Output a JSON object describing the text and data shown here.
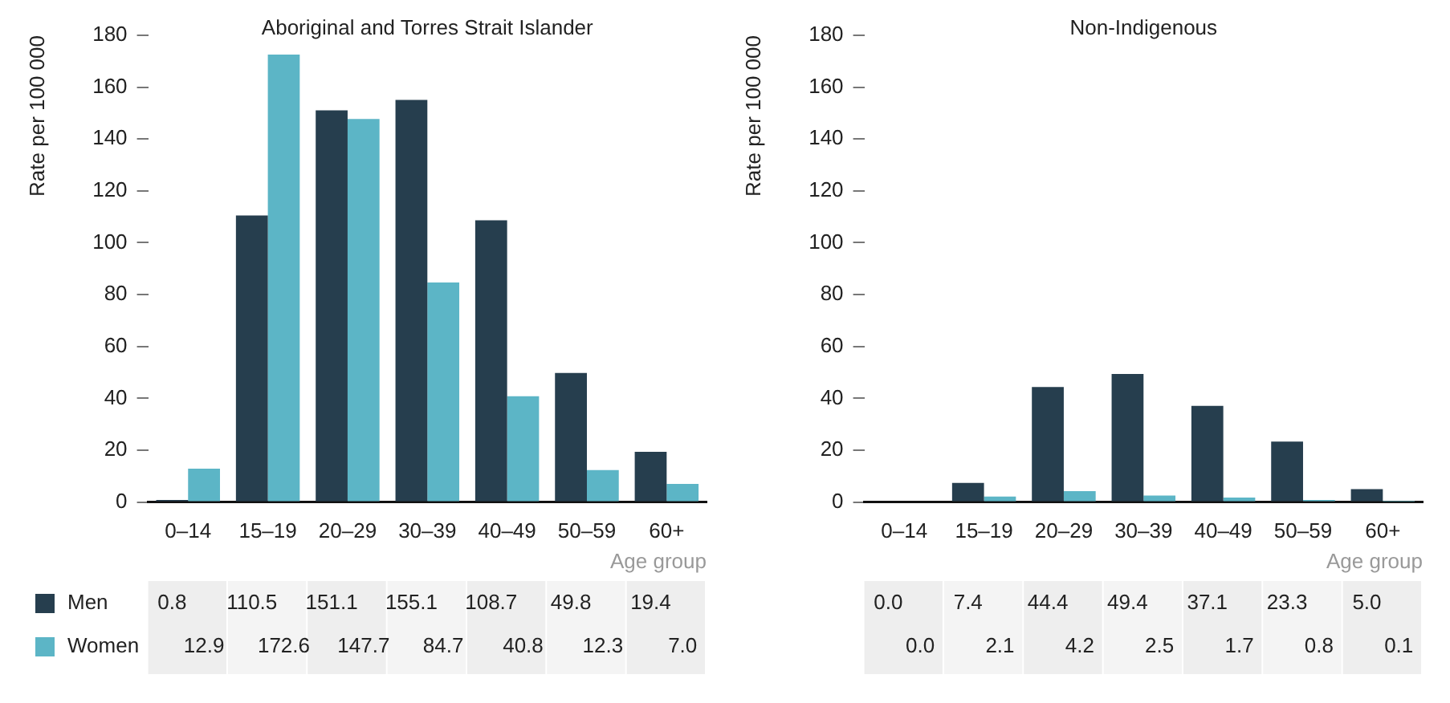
{
  "chart_data": [
    {
      "type": "bar",
      "title": "Aboriginal and Torres Strait Islander",
      "xlabel": "Age group",
      "ylabel": "Rate per 100 000",
      "categories": [
        "0–14",
        "15–19",
        "20–29",
        "30–39",
        "40–49",
        "50–59",
        "60+"
      ],
      "series": [
        {
          "name": "Men",
          "color": "#263e4e",
          "values": [
            0.8,
            110.5,
            151.1,
            155.1,
            108.7,
            49.8,
            19.4
          ],
          "value_labels": [
            "0.8",
            "110.5",
            "151.1",
            "155.1",
            "108.7",
            "49.8",
            "19.4"
          ]
        },
        {
          "name": "Women",
          "color": "#5cb5c6",
          "values": [
            12.9,
            172.6,
            147.7,
            84.7,
            40.8,
            12.3,
            7.0
          ],
          "value_labels": [
            "12.9",
            "172.6",
            "147.7",
            "84.7",
            "40.8",
            "12.3",
            "7.0"
          ]
        }
      ],
      "ylim": [
        0,
        180
      ],
      "yticks": [
        0,
        20,
        40,
        60,
        80,
        100,
        120,
        140,
        160,
        180
      ],
      "grid": false,
      "legend": "bottom"
    },
    {
      "type": "bar",
      "title": "Non-Indigenous",
      "xlabel": "Age group",
      "ylabel": "Rate per 100 000",
      "categories": [
        "0–14",
        "15–19",
        "20–29",
        "30–39",
        "40–49",
        "50–59",
        "60+"
      ],
      "series": [
        {
          "color": "#263e4e",
          "values": [
            0.0,
            7.4,
            44.4,
            49.4,
            37.1,
            23.3,
            5.0
          ],
          "value_labels": [
            "0.0",
            "7.4",
            "44.4",
            "49.4",
            "37.1",
            "23.3",
            "5.0"
          ]
        },
        {
          "color": "#5cb5c6",
          "values": [
            0.0,
            2.1,
            4.2,
            2.5,
            1.7,
            0.8,
            0.1
          ],
          "value_labels": [
            "0.0",
            "2.1",
            "4.2",
            "2.5",
            "1.7",
            "0.8",
            "0.1"
          ]
        }
      ],
      "ylim": [
        0,
        180
      ],
      "yticks": [
        0,
        20,
        40,
        60,
        80,
        100,
        120,
        140,
        160,
        180
      ],
      "grid": false
    }
  ]
}
